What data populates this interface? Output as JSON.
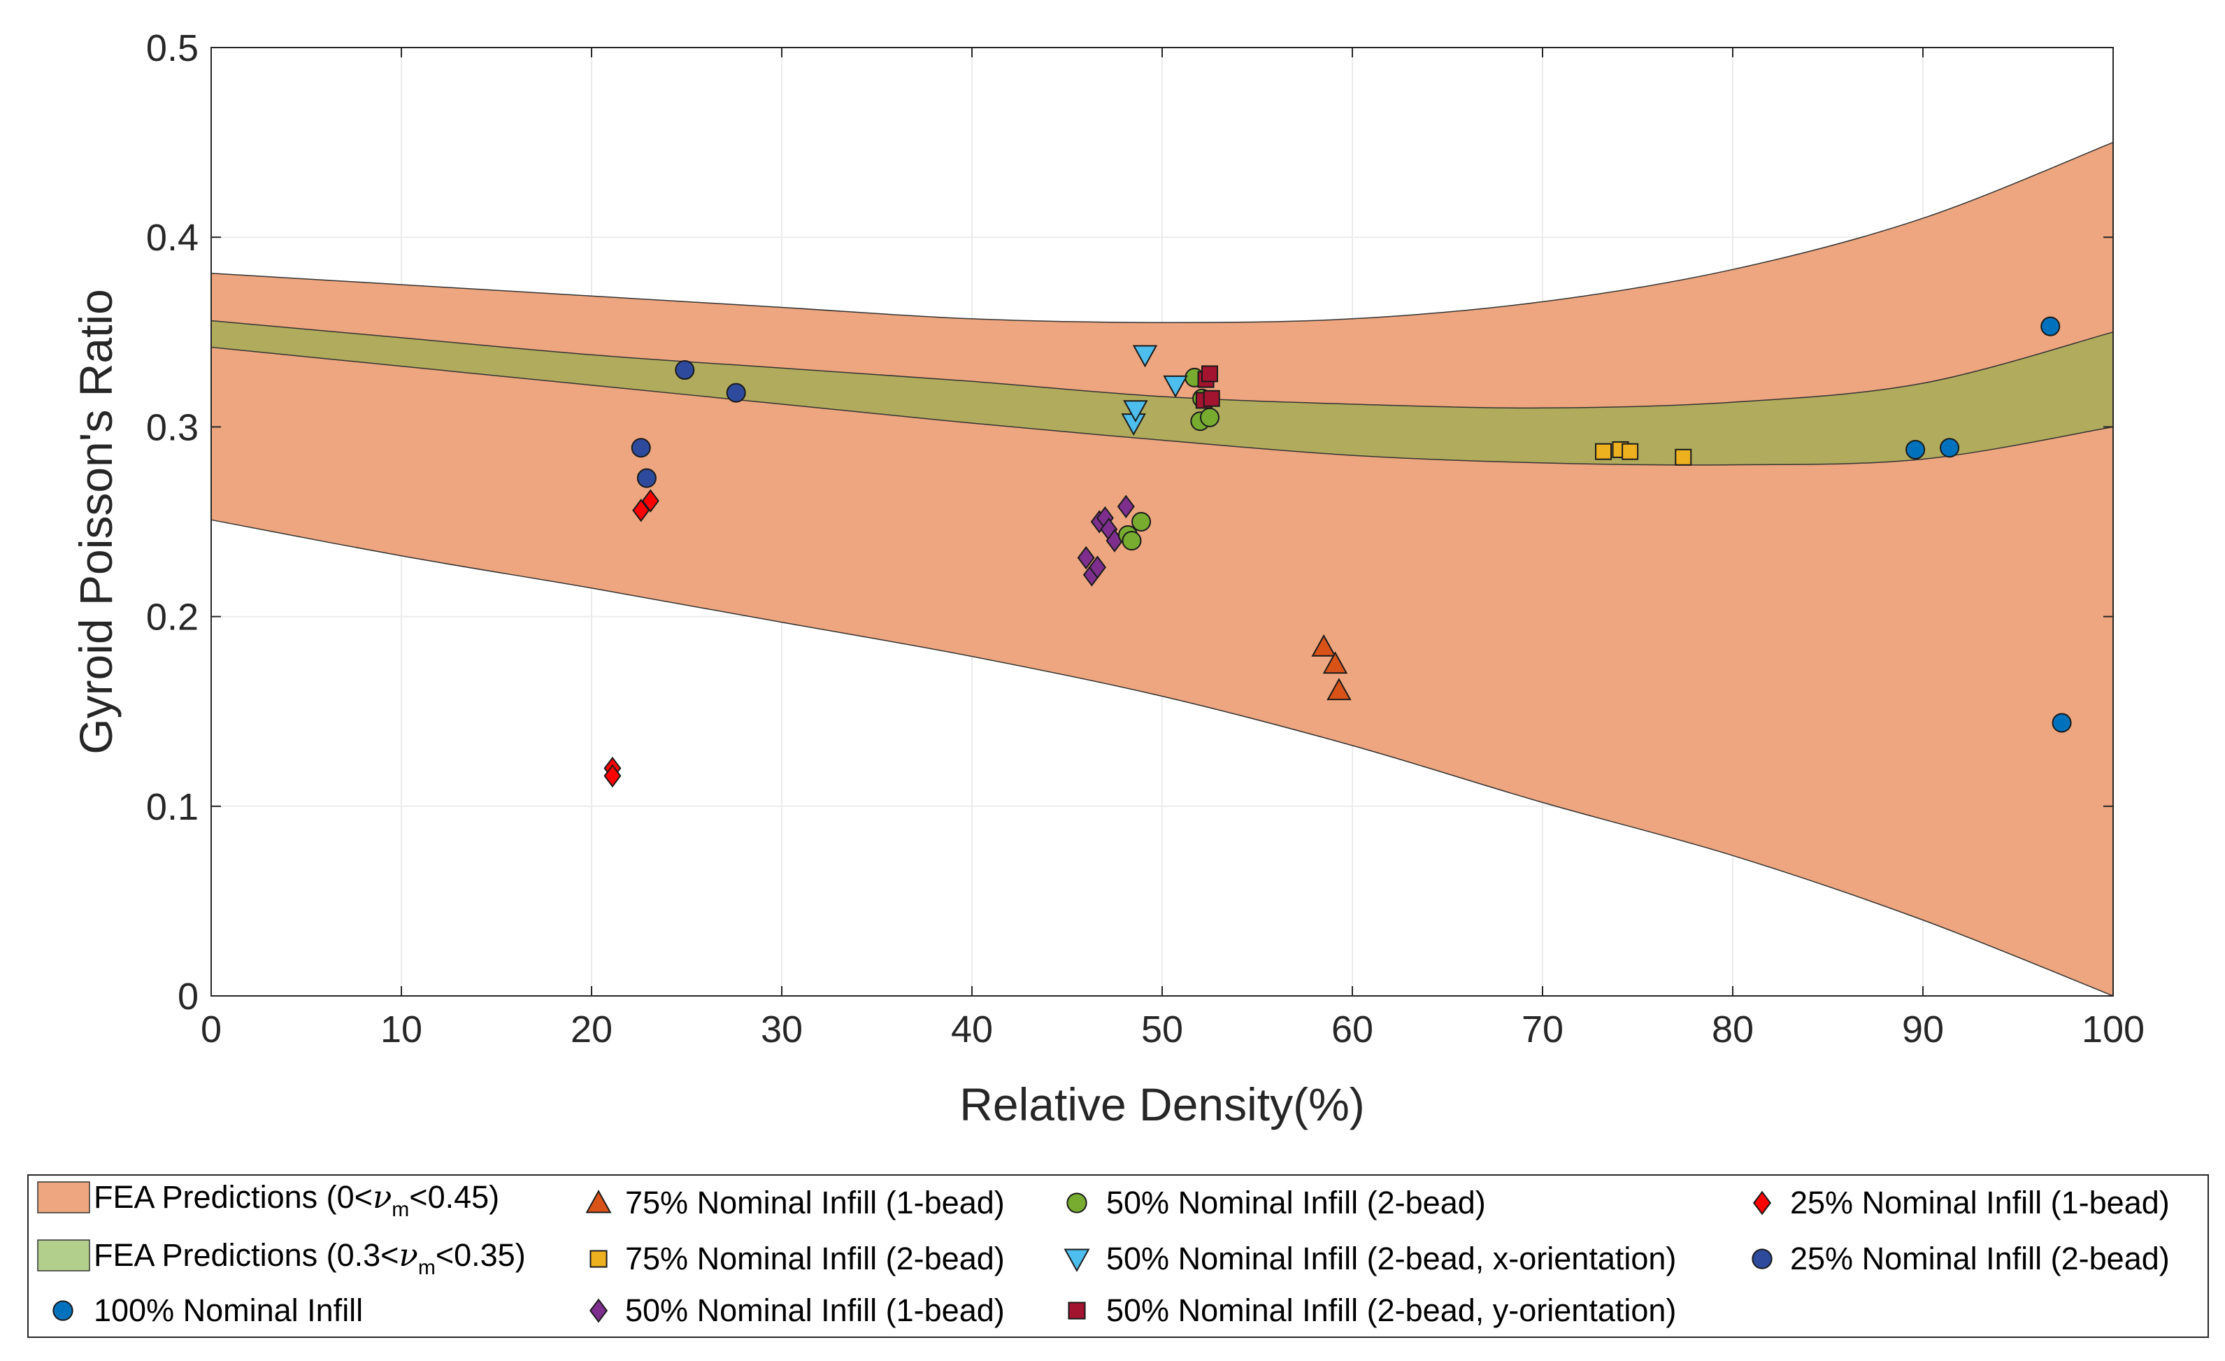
{
  "chart_data": {
    "type": "scatter",
    "title": "",
    "xlabel": "Relative Density(%)",
    "ylabel": "Gyroid Poisson's Ratio",
    "xlim": [
      0,
      100
    ],
    "ylim": [
      0,
      0.5
    ],
    "xticks": [
      0,
      10,
      20,
      30,
      40,
      50,
      60,
      70,
      80,
      90,
      100
    ],
    "yticks": [
      0,
      0.1,
      0.2,
      0.3,
      0.4,
      0.5
    ],
    "xtick_labels": [
      "0",
      "10",
      "20",
      "30",
      "40",
      "50",
      "60",
      "70",
      "80",
      "90",
      "100"
    ],
    "ytick_labels": [
      "0",
      "0.1",
      "0.2",
      "0.3",
      "0.4",
      "0.5"
    ],
    "grid": true,
    "legend_position": "bottom",
    "bands": [
      {
        "name": "FEA Predictions (0<νm<0.45)",
        "legend_main": "FEA Predictions (0<",
        "legend_symbol": "ν",
        "legend_sub": "m",
        "legend_tail": "<0.45)",
        "color": "#EDA67F",
        "upper": [
          [
            0,
            0.381
          ],
          [
            10,
            0.375
          ],
          [
            20,
            0.369
          ],
          [
            30,
            0.363
          ],
          [
            40,
            0.357
          ],
          [
            50,
            0.355
          ],
          [
            60,
            0.357
          ],
          [
            70,
            0.366
          ],
          [
            80,
            0.383
          ],
          [
            90,
            0.41
          ],
          [
            100,
            0.45
          ]
        ],
        "lower": [
          [
            0,
            0.251
          ],
          [
            10,
            0.232
          ],
          [
            20,
            0.215
          ],
          [
            30,
            0.197
          ],
          [
            40,
            0.179
          ],
          [
            50,
            0.158
          ],
          [
            60,
            0.132
          ],
          [
            70,
            0.102
          ],
          [
            80,
            0.074
          ],
          [
            90,
            0.04
          ],
          [
            100,
            0.0
          ]
        ]
      },
      {
        "name": "FEA Predictions (0.3<νm<0.35)",
        "legend_main": "FEA Predictions (0.3<",
        "legend_symbol": "ν",
        "legend_sub": "m",
        "legend_tail": "<0.35)",
        "color": "#B1AB5D",
        "legend_color": "#B3CF8C",
        "upper": [
          [
            0,
            0.356
          ],
          [
            10,
            0.347
          ],
          [
            20,
            0.338
          ],
          [
            30,
            0.331
          ],
          [
            40,
            0.324
          ],
          [
            50,
            0.316
          ],
          [
            60,
            0.312
          ],
          [
            70,
            0.31
          ],
          [
            80,
            0.313
          ],
          [
            90,
            0.323
          ],
          [
            100,
            0.35
          ]
        ],
        "lower": [
          [
            0,
            0.342
          ],
          [
            10,
            0.332
          ],
          [
            20,
            0.322
          ],
          [
            30,
            0.312
          ],
          [
            40,
            0.302
          ],
          [
            50,
            0.293
          ],
          [
            60,
            0.285
          ],
          [
            70,
            0.281
          ],
          [
            80,
            0.28
          ],
          [
            90,
            0.283
          ],
          [
            100,
            0.3
          ]
        ]
      }
    ],
    "series": [
      {
        "name": "100% Nominal Infill",
        "marker": "circle",
        "color": "#0072BD",
        "points": [
          [
            89.6,
            0.288
          ],
          [
            91.4,
            0.289
          ],
          [
            96.7,
            0.353
          ],
          [
            97.3,
            0.144
          ]
        ]
      },
      {
        "name": "75% Nominal Infill (1-bead)",
        "marker": "triangle-up",
        "color": "#D95319",
        "points": [
          [
            58.5,
            0.184
          ],
          [
            59.1,
            0.175
          ],
          [
            59.3,
            0.161
          ]
        ]
      },
      {
        "name": "75% Nominal Infill (2-bead)",
        "marker": "square",
        "color": "#EDB120",
        "points": [
          [
            73.2,
            0.287
          ],
          [
            74.1,
            0.288
          ],
          [
            74.6,
            0.287
          ],
          [
            77.4,
            0.284
          ]
        ]
      },
      {
        "name": "50% Nominal Infill (1-bead)",
        "marker": "diamond",
        "color": "#7E2F8E",
        "points": [
          [
            46.0,
            0.231
          ],
          [
            46.3,
            0.222
          ],
          [
            46.6,
            0.226
          ],
          [
            46.7,
            0.25
          ],
          [
            47.0,
            0.252
          ],
          [
            47.2,
            0.246
          ],
          [
            47.5,
            0.24
          ],
          [
            48.1,
            0.258
          ]
        ]
      },
      {
        "name": "50% Nominal Infill (2-bead)",
        "marker": "circle",
        "color": "#77AC30",
        "points": [
          [
            48.2,
            0.243
          ],
          [
            48.4,
            0.24
          ],
          [
            48.9,
            0.25
          ],
          [
            51.7,
            0.326
          ],
          [
            52.0,
            0.303
          ],
          [
            52.1,
            0.315
          ],
          [
            52.5,
            0.305
          ]
        ]
      },
      {
        "name": "50% Nominal Infill (2-bead, x-orientation)",
        "marker": "triangle-down",
        "color": "#4DBEEE",
        "points": [
          [
            48.5,
            0.302
          ],
          [
            48.6,
            0.309
          ],
          [
            49.1,
            0.338
          ],
          [
            50.7,
            0.322
          ]
        ]
      },
      {
        "name": "50% Nominal Infill (2-bead, y-orientation)",
        "marker": "square",
        "color": "#A2142F",
        "points": [
          [
            52.2,
            0.314
          ],
          [
            52.3,
            0.325
          ],
          [
            52.5,
            0.328
          ],
          [
            52.6,
            0.315
          ]
        ]
      },
      {
        "name": "25% Nominal Infill (1-bead)",
        "marker": "diamond",
        "color": "#FF0000",
        "points": [
          [
            21.1,
            0.12
          ],
          [
            21.1,
            0.116
          ],
          [
            22.6,
            0.256
          ],
          [
            23.1,
            0.261
          ]
        ]
      },
      {
        "name": "25% Nominal Infill (2-bead)",
        "marker": "circle",
        "color": "#2E4A9C",
        "points": [
          [
            22.6,
            0.289
          ],
          [
            22.9,
            0.273
          ],
          [
            24.9,
            0.33
          ],
          [
            27.6,
            0.318
          ]
        ]
      }
    ]
  }
}
